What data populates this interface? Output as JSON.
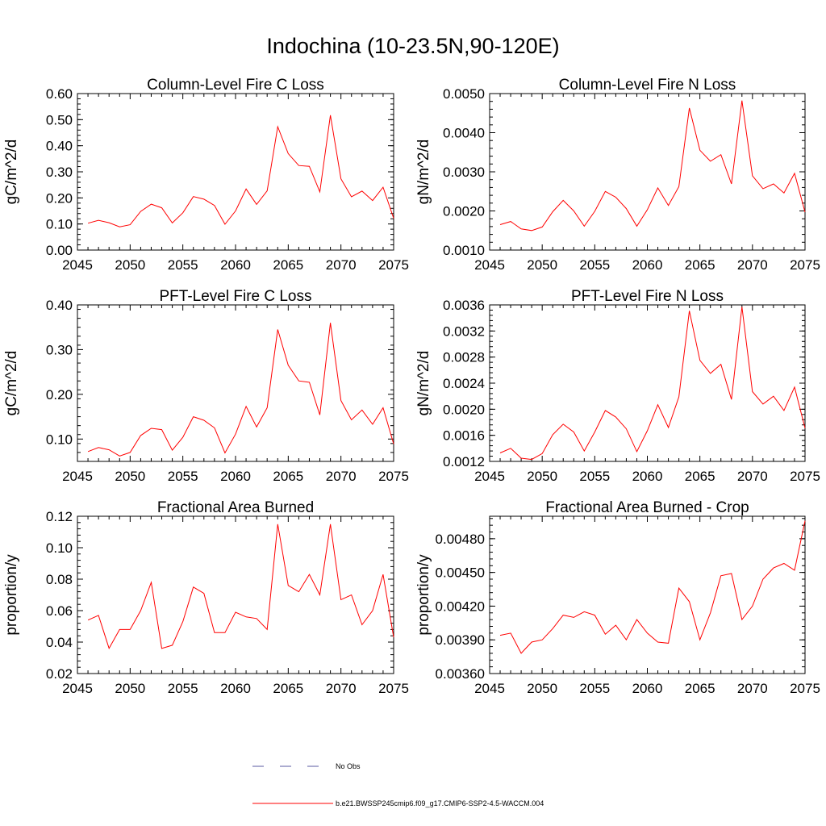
{
  "title": "Indochina (10-23.5N,90-120E)",
  "colors": {
    "series": "#ff0000",
    "obs": "#5a5aa0",
    "axis": "#000000"
  },
  "legend": [
    {
      "label": "No Obs",
      "style": "dashed",
      "color": "#5a5aa0"
    },
    {
      "label": "b.e21.BWSSP245cmip6.f09_g17.CMIP6-SSP2-4.5-WACCM.004",
      "style": "solid",
      "color": "#ff0000"
    }
  ],
  "chart_data": [
    {
      "type": "line",
      "title": "Column-Level Fire C Loss",
      "xlabel": "",
      "ylabel": "gC/m^2/d",
      "xlim": [
        2045,
        2075
      ],
      "ylim": [
        0.0,
        0.6
      ],
      "xticks": [
        "2045",
        "2050",
        "2055",
        "2060",
        "2065",
        "2070",
        "2075"
      ],
      "yticks": [
        "0.00",
        "0.10",
        "0.20",
        "0.30",
        "0.40",
        "0.50",
        "0.60"
      ],
      "x": [
        2046,
        2047,
        2048,
        2049,
        2050,
        2051,
        2052,
        2053,
        2054,
        2055,
        2056,
        2057,
        2058,
        2059,
        2060,
        2061,
        2062,
        2063,
        2064,
        2065,
        2066,
        2067,
        2068,
        2069,
        2070,
        2071,
        2072,
        2073,
        2074,
        2075
      ],
      "series": [
        {
          "values": [
            0.103,
            0.114,
            0.105,
            0.089,
            0.097,
            0.148,
            0.176,
            0.162,
            0.104,
            0.143,
            0.205,
            0.195,
            0.171,
            0.099,
            0.15,
            0.234,
            0.175,
            0.227,
            0.473,
            0.37,
            0.324,
            0.321,
            0.223,
            0.517,
            0.273,
            0.204,
            0.226,
            0.19,
            0.241,
            0.122
          ]
        }
      ]
    },
    {
      "type": "line",
      "title": "Column-Level Fire N Loss",
      "xlabel": "",
      "ylabel": "gN/m^2/d",
      "xlim": [
        2045,
        2075
      ],
      "ylim": [
        0.001,
        0.005
      ],
      "xticks": [
        "2045",
        "2050",
        "2055",
        "2060",
        "2065",
        "2070",
        "2075"
      ],
      "yticks": [
        "0.0010",
        "0.0020",
        "0.0030",
        "0.0040",
        "0.0050"
      ],
      "x": [
        2046,
        2047,
        2048,
        2049,
        2050,
        2051,
        2052,
        2053,
        2054,
        2055,
        2056,
        2057,
        2058,
        2059,
        2060,
        2061,
        2062,
        2063,
        2064,
        2065,
        2066,
        2067,
        2068,
        2069,
        2070,
        2071,
        2072,
        2073,
        2074,
        2075
      ],
      "series": [
        {
          "values": [
            0.00165,
            0.00173,
            0.00154,
            0.0015,
            0.00159,
            0.00198,
            0.00227,
            0.002,
            0.00161,
            0.00199,
            0.0025,
            0.00235,
            0.00206,
            0.00161,
            0.00203,
            0.00259,
            0.00214,
            0.00262,
            0.00463,
            0.00355,
            0.00327,
            0.00344,
            0.00269,
            0.00482,
            0.0029,
            0.00257,
            0.00269,
            0.00246,
            0.00296,
            0.00197
          ]
        }
      ]
    },
    {
      "type": "line",
      "title": "PFT-Level Fire C Loss",
      "xlabel": "",
      "ylabel": "gC/m^2/d",
      "xlim": [
        2045,
        2075
      ],
      "ylim": [
        0.05,
        0.4
      ],
      "xticks": [
        "2045",
        "2050",
        "2055",
        "2060",
        "2065",
        "2070",
        "2075"
      ],
      "yticks": [
        "0.10",
        "0.20",
        "0.30",
        "0.40"
      ],
      "x": [
        2046,
        2047,
        2048,
        2049,
        2050,
        2051,
        2052,
        2053,
        2054,
        2055,
        2056,
        2057,
        2058,
        2059,
        2060,
        2061,
        2062,
        2063,
        2064,
        2065,
        2066,
        2067,
        2068,
        2069,
        2070,
        2071,
        2072,
        2073,
        2074,
        2075
      ],
      "series": [
        {
          "values": [
            0.072,
            0.081,
            0.076,
            0.062,
            0.07,
            0.108,
            0.124,
            0.121,
            0.075,
            0.104,
            0.15,
            0.142,
            0.125,
            0.069,
            0.111,
            0.173,
            0.127,
            0.17,
            0.345,
            0.265,
            0.23,
            0.227,
            0.154,
            0.36,
            0.186,
            0.143,
            0.165,
            0.133,
            0.17,
            0.089
          ]
        }
      ]
    },
    {
      "type": "line",
      "title": "PFT-Level Fire N Loss",
      "xlabel": "",
      "ylabel": "gN/m^2/d",
      "xlim": [
        2045,
        2075
      ],
      "ylim": [
        0.0012,
        0.0036
      ],
      "xticks": [
        "2045",
        "2050",
        "2055",
        "2060",
        "2065",
        "2070",
        "2075"
      ],
      "yticks": [
        "0.0012",
        "0.0016",
        "0.0020",
        "0.0024",
        "0.0028",
        "0.0032",
        "0.0036"
      ],
      "x": [
        2046,
        2047,
        2048,
        2049,
        2050,
        2051,
        2052,
        2053,
        2054,
        2055,
        2056,
        2057,
        2058,
        2059,
        2060,
        2061,
        2062,
        2063,
        2064,
        2065,
        2066,
        2067,
        2068,
        2069,
        2070,
        2071,
        2072,
        2073,
        2074,
        2075
      ],
      "series": [
        {
          "values": [
            0.00133,
            0.0014,
            0.00125,
            0.00123,
            0.00132,
            0.00161,
            0.00177,
            0.00165,
            0.00136,
            0.00165,
            0.00198,
            0.00188,
            0.0017,
            0.00135,
            0.00167,
            0.00207,
            0.00172,
            0.00219,
            0.00351,
            0.00275,
            0.00255,
            0.00269,
            0.00215,
            0.00357,
            0.00227,
            0.00208,
            0.0022,
            0.00198,
            0.00234,
            0.00171
          ]
        }
      ]
    },
    {
      "type": "line",
      "title": "Fractional Area Burned",
      "xlabel": "",
      "ylabel": "proportion/y",
      "xlim": [
        2045,
        2075
      ],
      "ylim": [
        0.02,
        0.12
      ],
      "xticks": [
        "2045",
        "2050",
        "2055",
        "2060",
        "2065",
        "2070",
        "2075"
      ],
      "yticks": [
        "0.02",
        "0.04",
        "0.06",
        "0.08",
        "0.10",
        "0.12"
      ],
      "x": [
        2046,
        2047,
        2048,
        2049,
        2050,
        2051,
        2052,
        2053,
        2054,
        2055,
        2056,
        2057,
        2058,
        2059,
        2060,
        2061,
        2062,
        2063,
        2064,
        2065,
        2066,
        2067,
        2068,
        2069,
        2070,
        2071,
        2072,
        2073,
        2074,
        2075
      ],
      "series": [
        {
          "values": [
            0.054,
            0.057,
            0.036,
            0.048,
            0.048,
            0.06,
            0.078,
            0.036,
            0.038,
            0.053,
            0.075,
            0.071,
            0.046,
            0.046,
            0.059,
            0.056,
            0.055,
            0.048,
            0.115,
            0.076,
            0.072,
            0.083,
            0.07,
            0.115,
            0.067,
            0.07,
            0.051,
            0.06,
            0.083,
            0.043
          ]
        }
      ]
    },
    {
      "type": "line",
      "title": "Fractional Area Burned - Crop",
      "xlabel": "",
      "ylabel": "proportion/y",
      "xlim": [
        2045,
        2075
      ],
      "ylim": [
        0.0036,
        0.005
      ],
      "xticks": [
        "2045",
        "2050",
        "2055",
        "2060",
        "2065",
        "2070",
        "2075"
      ],
      "yticks": [
        "0.00360",
        "0.00390",
        "0.00420",
        "0.00450",
        "0.00480"
      ],
      "x": [
        2046,
        2047,
        2048,
        2049,
        2050,
        2051,
        2052,
        2053,
        2054,
        2055,
        2056,
        2057,
        2058,
        2059,
        2060,
        2061,
        2062,
        2063,
        2064,
        2065,
        2066,
        2067,
        2068,
        2069,
        2070,
        2071,
        2072,
        2073,
        2074,
        2075
      ],
      "series": [
        {
          "values": [
            0.00394,
            0.00396,
            0.00378,
            0.00388,
            0.0039,
            0.004,
            0.00412,
            0.0041,
            0.00415,
            0.00412,
            0.00395,
            0.00403,
            0.0039,
            0.00408,
            0.00396,
            0.00388,
            0.00387,
            0.00436,
            0.00424,
            0.0039,
            0.00414,
            0.00447,
            0.00449,
            0.00408,
            0.0042,
            0.00444,
            0.00454,
            0.00458,
            0.00452,
            0.00496
          ]
        }
      ]
    }
  ]
}
